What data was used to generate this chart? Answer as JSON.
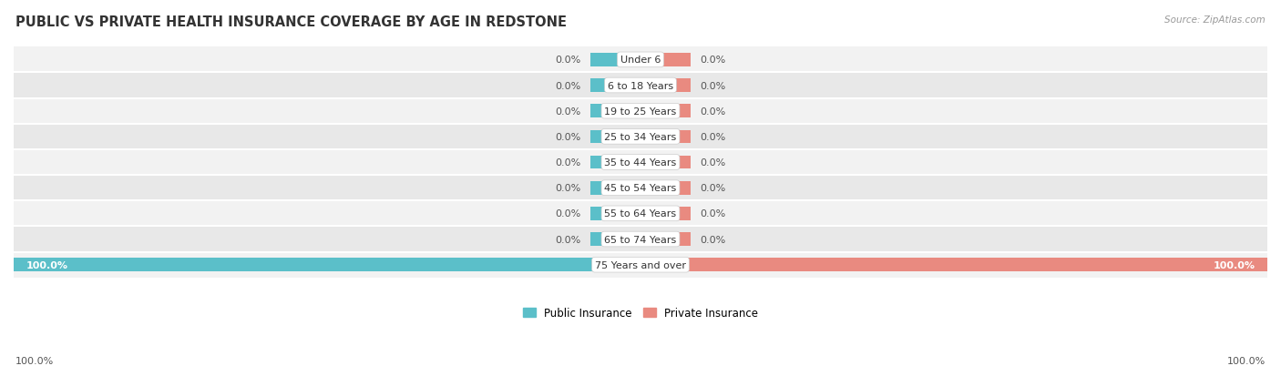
{
  "title": "PUBLIC VS PRIVATE HEALTH INSURANCE COVERAGE BY AGE IN REDSTONE",
  "source": "Source: ZipAtlas.com",
  "categories": [
    "Under 6",
    "6 to 18 Years",
    "19 to 25 Years",
    "25 to 34 Years",
    "35 to 44 Years",
    "45 to 54 Years",
    "55 to 64 Years",
    "65 to 74 Years",
    "75 Years and over"
  ],
  "public_values": [
    0.0,
    0.0,
    0.0,
    0.0,
    0.0,
    0.0,
    0.0,
    0.0,
    100.0
  ],
  "private_values": [
    0.0,
    0.0,
    0.0,
    0.0,
    0.0,
    0.0,
    0.0,
    0.0,
    100.0
  ],
  "public_color": "#5bbfc9",
  "private_color": "#e98a80",
  "row_colors": [
    "#f2f2f2",
    "#e8e8e8"
  ],
  "label_fontsize": 8.0,
  "title_fontsize": 10.5,
  "legend_fontsize": 8.5,
  "bar_height": 0.52,
  "stub_size": 8.0,
  "xlim": [
    -100,
    100
  ],
  "public_label": "Public Insurance",
  "private_label": "Private Insurance",
  "label_color_inside": "#ffffff",
  "label_color_outside": "#555555"
}
